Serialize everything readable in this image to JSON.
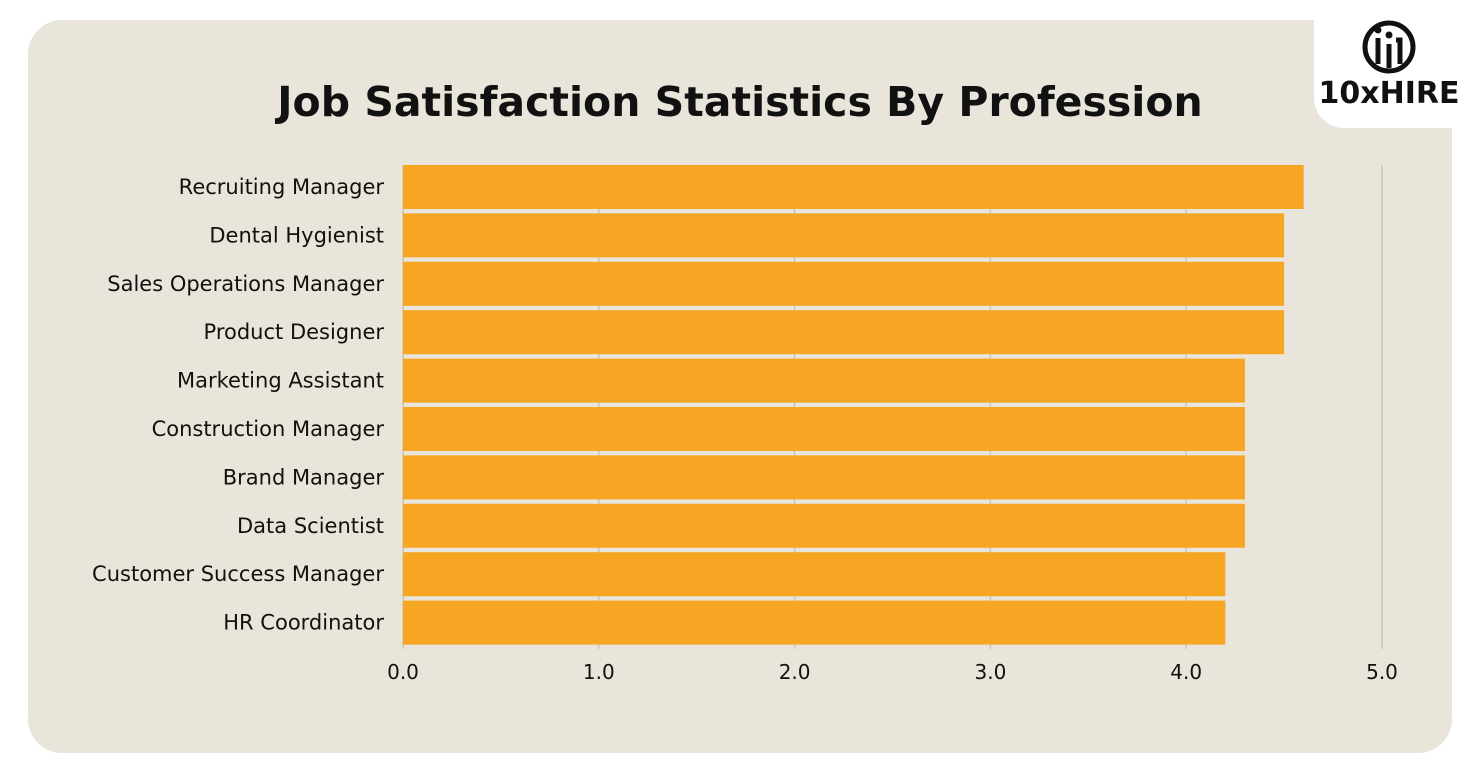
{
  "brand": {
    "name": "10xHIRE"
  },
  "chart_data": {
    "type": "bar",
    "orientation": "horizontal",
    "title": "Job Satisfaction Statistics By Profession",
    "categories": [
      "Recruiting Manager",
      "Dental Hygienist",
      "Sales Operations Manager",
      "Product Designer",
      "Marketing Assistant",
      "Construction Manager",
      "Brand Manager",
      "Data Scientist",
      "Customer Success Manager",
      "HR Coordinator"
    ],
    "values": [
      4.6,
      4.5,
      4.5,
      4.5,
      4.3,
      4.3,
      4.3,
      4.3,
      4.2,
      4.2
    ],
    "xlim": [
      0,
      5
    ],
    "x_ticks": [
      "0.0",
      "1.0",
      "2.0",
      "3.0",
      "4.0",
      "5.0"
    ],
    "grid": true,
    "bar_color": "#f6a623"
  }
}
